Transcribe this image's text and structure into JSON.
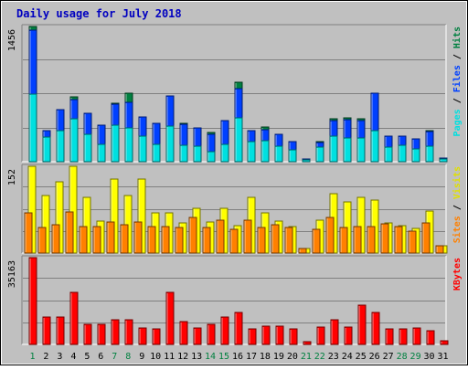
{
  "chart_data": {
    "type": "bar",
    "title": "Daily usage for July 2018",
    "categories": [
      "1",
      "2",
      "3",
      "4",
      "5",
      "6",
      "7",
      "8",
      "9",
      "10",
      "11",
      "12",
      "13",
      "14",
      "15",
      "16",
      "17",
      "18",
      "19",
      "20",
      "21",
      "22",
      "23",
      "24",
      "25",
      "26",
      "27",
      "28",
      "29",
      "30",
      "31"
    ],
    "weekend_days": [
      "1",
      "7",
      "8",
      "14",
      "15",
      "21",
      "22",
      "28",
      "29"
    ],
    "panels": [
      {
        "id": "hits_files_pages",
        "max_label": "1456",
        "ylim": [
          0,
          1456
        ],
        "side_labels": [
          {
            "text": "Pages",
            "color": "#00e0e0"
          },
          {
            "text": " / ",
            "color": "#000000"
          },
          {
            "text": "Files",
            "color": "#0040ff"
          },
          {
            "text": " / ",
            "color": "#000000"
          },
          {
            "text": "Hits",
            "color": "#008040"
          }
        ],
        "series": [
          {
            "name": "Hits",
            "color": "#008040",
            "values": [
              1456,
              330,
              560,
              700,
              520,
              390,
              630,
              740,
              480,
              410,
              710,
              410,
              360,
              310,
              440,
              860,
              330,
              370,
              300,
              220,
              30,
              220,
              460,
              470,
              460,
              740,
              280,
              280,
              250,
              330,
              40
            ]
          },
          {
            "name": "Files",
            "color": "#0040ff",
            "values": [
              1420,
              330,
              560,
              670,
              520,
              390,
              620,
              640,
              480,
              410,
              710,
              400,
              360,
              300,
              440,
              790,
              330,
              340,
              300,
              220,
              30,
              210,
              440,
              450,
              440,
              740,
              280,
              280,
              250,
              320,
              40
            ]
          },
          {
            "name": "Pages",
            "color": "#00e0e0",
            "values": [
              730,
              270,
              330,
              460,
              300,
              190,
              390,
              360,
              280,
              190,
              380,
              180,
              170,
              110,
              190,
              470,
              220,
              230,
              170,
              130,
              20,
              160,
              280,
              260,
              260,
              330,
              160,
              180,
              140,
              170,
              30
            ]
          }
        ]
      },
      {
        "id": "visits_sites",
        "max_label": "152",
        "ylim": [
          0,
          152
        ],
        "side_labels": [
          {
            "text": "Sites",
            "color": "#ff8000"
          },
          {
            "text": " / ",
            "color": "#000000"
          },
          {
            "text": "Visits",
            "color": "#e0e000"
          }
        ],
        "series": [
          {
            "name": "Visits",
            "color": "#ffff00",
            "values": [
              152,
              100,
              125,
              152,
              98,
              56,
              130,
              100,
              130,
              70,
              70,
              52,
              78,
              55,
              78,
              48,
              97,
              70,
              56,
              46,
              8,
              57,
              104,
              90,
              98,
              92,
              52,
              48,
              43,
              74,
              12
            ]
          },
          {
            "name": "Sites",
            "color": "#ff8000",
            "values": [
              71,
              45,
              50,
              72,
              47,
              46,
              55,
              50,
              54,
              46,
              46,
              45,
              62,
              44,
              58,
              42,
              57,
              45,
              49,
              45,
              8,
              42,
              62,
              45,
              46,
              47,
              51,
              46,
              39,
              52,
              12
            ]
          }
        ]
      },
      {
        "id": "kbytes",
        "max_label": "35163",
        "ylim": [
          0,
          35163
        ],
        "side_labels": [
          {
            "text": "KBytes",
            "color": "#ff0000"
          }
        ],
        "series": [
          {
            "name": "KBytes",
            "color": "#ff0000",
            "values": [
              35163,
              11000,
              11000,
              21000,
              8200,
              8200,
              10000,
              10000,
              6700,
              6400,
              21000,
              9300,
              6700,
              8300,
              11000,
              13000,
              6400,
              7500,
              7500,
              6400,
              1000,
              7200,
              10000,
              7000,
              16000,
              13000,
              6400,
              6400,
              6800,
              5400,
              1300
            ]
          }
        ]
      }
    ]
  }
}
